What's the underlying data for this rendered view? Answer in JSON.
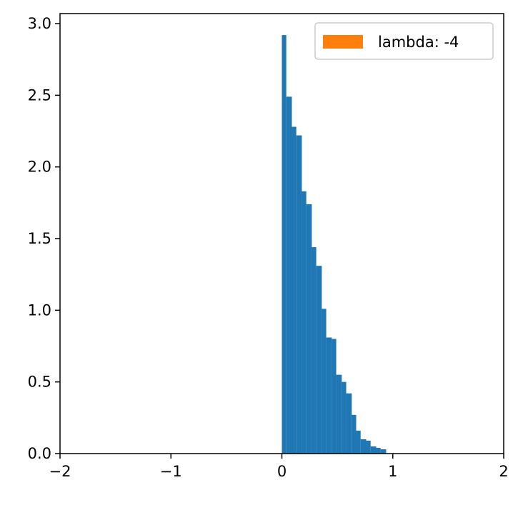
{
  "chart_data": {
    "type": "bar",
    "title": "",
    "xlabel": "",
    "ylabel": "",
    "xlim": [
      -2,
      2
    ],
    "ylim": [
      0,
      3.07
    ],
    "x_ticks": [
      -2,
      -1,
      0,
      1,
      2
    ],
    "x_tick_labels": [
      "−2",
      "−1",
      "0",
      "1",
      "2"
    ],
    "y_ticks": [
      0.0,
      0.5,
      1.0,
      1.5,
      2.0,
      2.5,
      3.0
    ],
    "y_tick_labels": [
      "0.0",
      "0.5",
      "1.0",
      "1.5",
      "2.0",
      "2.5",
      "3.0"
    ],
    "grid": false,
    "legend": {
      "placement": "top-right",
      "entries": [
        {
          "label": "lambda: -4",
          "color": "#ff7f0e"
        }
      ]
    },
    "series": [
      {
        "color": "#1f77b4",
        "bins": [
          {
            "x0": 0.0,
            "x1": 0.04,
            "value": 2.92
          },
          {
            "x0": 0.04,
            "x1": 0.09,
            "value": 2.49
          },
          {
            "x0": 0.09,
            "x1": 0.13,
            "value": 2.28
          },
          {
            "x0": 0.13,
            "x1": 0.18,
            "value": 2.22
          },
          {
            "x0": 0.18,
            "x1": 0.22,
            "value": 1.83
          },
          {
            "x0": 0.22,
            "x1": 0.27,
            "value": 1.74
          },
          {
            "x0": 0.27,
            "x1": 0.31,
            "value": 1.44
          },
          {
            "x0": 0.31,
            "x1": 0.36,
            "value": 1.31
          },
          {
            "x0": 0.36,
            "x1": 0.4,
            "value": 1.01
          },
          {
            "x0": 0.4,
            "x1": 0.45,
            "value": 0.81
          },
          {
            "x0": 0.45,
            "x1": 0.49,
            "value": 0.8
          },
          {
            "x0": 0.49,
            "x1": 0.54,
            "value": 0.55
          },
          {
            "x0": 0.54,
            "x1": 0.58,
            "value": 0.5
          },
          {
            "x0": 0.58,
            "x1": 0.63,
            "value": 0.42
          },
          {
            "x0": 0.63,
            "x1": 0.67,
            "value": 0.27
          },
          {
            "x0": 0.67,
            "x1": 0.71,
            "value": 0.16
          },
          {
            "x0": 0.71,
            "x1": 0.76,
            "value": 0.1
          },
          {
            "x0": 0.76,
            "x1": 0.8,
            "value": 0.09
          },
          {
            "x0": 0.8,
            "x1": 0.85,
            "value": 0.05
          },
          {
            "x0": 0.85,
            "x1": 0.89,
            "value": 0.04
          },
          {
            "x0": 0.89,
            "x1": 0.94,
            "value": 0.03
          }
        ]
      }
    ]
  }
}
